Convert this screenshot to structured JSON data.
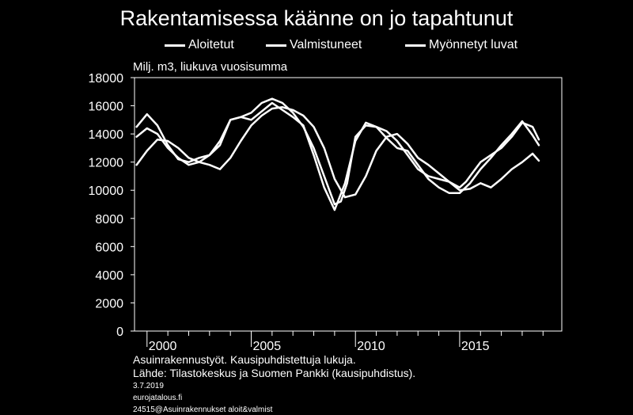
{
  "title": "Rakentamisessa käänne on jo tapahtunut",
  "unit_label": "Milj. m3, liukuva vuosisumma",
  "footnote1": "Asuinrakennustyöt. Kausipuhdistettuja lukuja.",
  "footnote2": "Lähde: Tilastokeskus ja Suomen Pankki (kausipuhdistus).",
  "date": "3.7.2019",
  "site": "eurojatalous.fi",
  "code": "24515@Asuinrakennukset aloit&valmist",
  "chart_data": {
    "type": "line",
    "title": "Rakentamisessa käänne on jo tapahtunut",
    "ylabel": "Milj. m3, liukuva vuosisumma",
    "xlim": [
      1999.4,
      2019.9
    ],
    "ylim": [
      0,
      18000
    ],
    "yticks": [
      "0",
      "2000",
      "4000",
      "6000",
      "8000",
      "10000",
      "12000",
      "14000",
      "16000",
      "18000"
    ],
    "xticks": [
      "2000",
      "2005",
      "2010",
      "2015"
    ],
    "xtick_values": [
      2000,
      2005,
      2010,
      2015
    ],
    "grid": false,
    "legend_position": "top",
    "series": [
      {
        "name": "Aloitetut",
        "x": [
          1999.5,
          2000,
          2000.5,
          2001,
          2001.5,
          2002,
          2002.5,
          2003,
          2003.5,
          2004,
          2004.5,
          2005,
          2005.5,
          2006,
          2006.5,
          2007,
          2007.5,
          2008,
          2008.5,
          2009,
          2009.3,
          2009.6,
          2010,
          2010.5,
          2011,
          2011.5,
          2012,
          2012.5,
          2013,
          2013.5,
          2014,
          2014.5,
          2015,
          2015.3,
          2015.6,
          2016,
          2016.5,
          2017,
          2017.5,
          2018,
          2018.5,
          2018.8
        ],
        "y": [
          14500,
          15400,
          14600,
          13200,
          12200,
          12000,
          12300,
          12500,
          13500,
          15000,
          15200,
          15500,
          16200,
          16500,
          16200,
          15500,
          14500,
          13000,
          11000,
          9000,
          9200,
          10500,
          13800,
          14600,
          14500,
          14200,
          13500,
          12500,
          11500,
          11000,
          10800,
          10600,
          10200,
          10600,
          11200,
          12000,
          12500,
          13000,
          13800,
          14800,
          14500,
          13600
        ]
      },
      {
        "name": "Valmistuneet",
        "x": [
          1999.5,
          2000,
          2000.5,
          2001,
          2001.5,
          2002,
          2002.5,
          2003,
          2003.5,
          2004,
          2004.5,
          2005,
          2005.5,
          2006,
          2006.5,
          2007,
          2007.5,
          2008,
          2008.5,
          2009,
          2009.5,
          2010,
          2010.5,
          2011,
          2011.5,
          2012,
          2012.5,
          2013,
          2013.5,
          2014,
          2014.5,
          2015,
          2015.5,
          2016,
          2016.5,
          2017,
          2017.5,
          2018,
          2018.5,
          2018.8
        ],
        "y": [
          11800,
          12800,
          13600,
          13500,
          13000,
          12300,
          12000,
          11800,
          11500,
          12300,
          13500,
          14600,
          15300,
          15800,
          15900,
          15700,
          15300,
          14500,
          13000,
          10800,
          9500,
          9700,
          11000,
          12800,
          13800,
          14000,
          13300,
          12300,
          11800,
          11200,
          10600,
          10000,
          10100,
          10500,
          10200,
          10800,
          11500,
          12000,
          12600,
          12100
        ]
      },
      {
        "name": "Myönnetyt luvat",
        "x": [
          1999.5,
          2000,
          2000.5,
          2001,
          2001.5,
          2002,
          2002.5,
          2003,
          2003.5,
          2004,
          2004.5,
          2005,
          2005.5,
          2006,
          2006.5,
          2007,
          2007.5,
          2008,
          2008.5,
          2009,
          2009.5,
          2010,
          2010.5,
          2011,
          2011.5,
          2012,
          2012.5,
          2013,
          2013.5,
          2014,
          2014.5,
          2015,
          2015.5,
          2016,
          2016.5,
          2017,
          2017.5,
          2018,
          2018.5,
          2018.8
        ],
        "y": [
          13800,
          14400,
          14000,
          13000,
          12300,
          11800,
          12000,
          12500,
          13200,
          15000,
          15200,
          15000,
          15600,
          16200,
          15700,
          15200,
          14600,
          12500,
          10200,
          8600,
          10500,
          13500,
          14800,
          14500,
          13700,
          13000,
          12800,
          11800,
          10800,
          10200,
          9800,
          9800,
          10500,
          11500,
          12300,
          13200,
          14000,
          14900,
          13900,
          13200
        ]
      }
    ]
  }
}
